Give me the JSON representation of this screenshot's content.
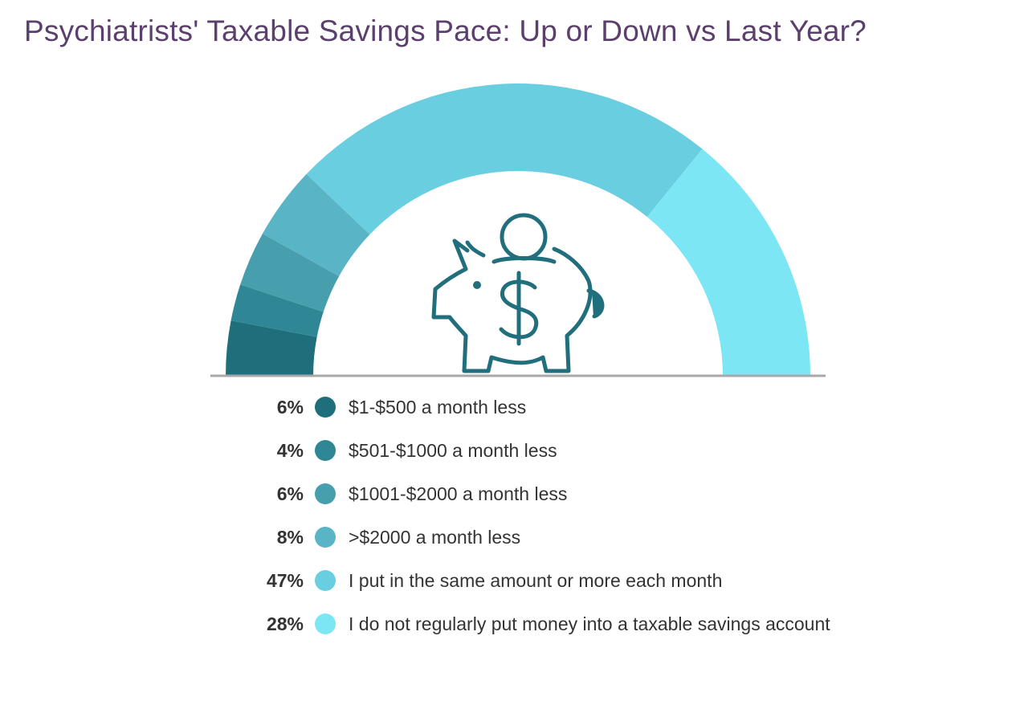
{
  "title": "Psychiatrists' Taxable Savings Pace: Up or Down vs Last Year?",
  "icon": "piggy-bank-dollar-icon",
  "chart_data": {
    "type": "pie",
    "style": "semicircle-gauge",
    "title": "Psychiatrists' Taxable Savings Pace: Up or Down vs Last Year?",
    "unit": "%",
    "categories": [
      "$1-$500 a month less",
      "$501-$1000 a month less",
      "$1001-$2000 a month less",
      ">$2000 a month less",
      "I put in the same amount or more each month",
      "I do not regularly put money into a taxable savings account"
    ],
    "values": [
      6,
      4,
      6,
      8,
      47,
      28
    ],
    "labels": [
      "6%",
      "4%",
      "6%",
      "8%",
      "47%",
      "28%"
    ],
    "colors": [
      "#1e6f7b",
      "#2f8796",
      "#479fae",
      "#59b5c5",
      "#69cedf",
      "#7de6f5"
    ],
    "legend_position": "bottom"
  }
}
